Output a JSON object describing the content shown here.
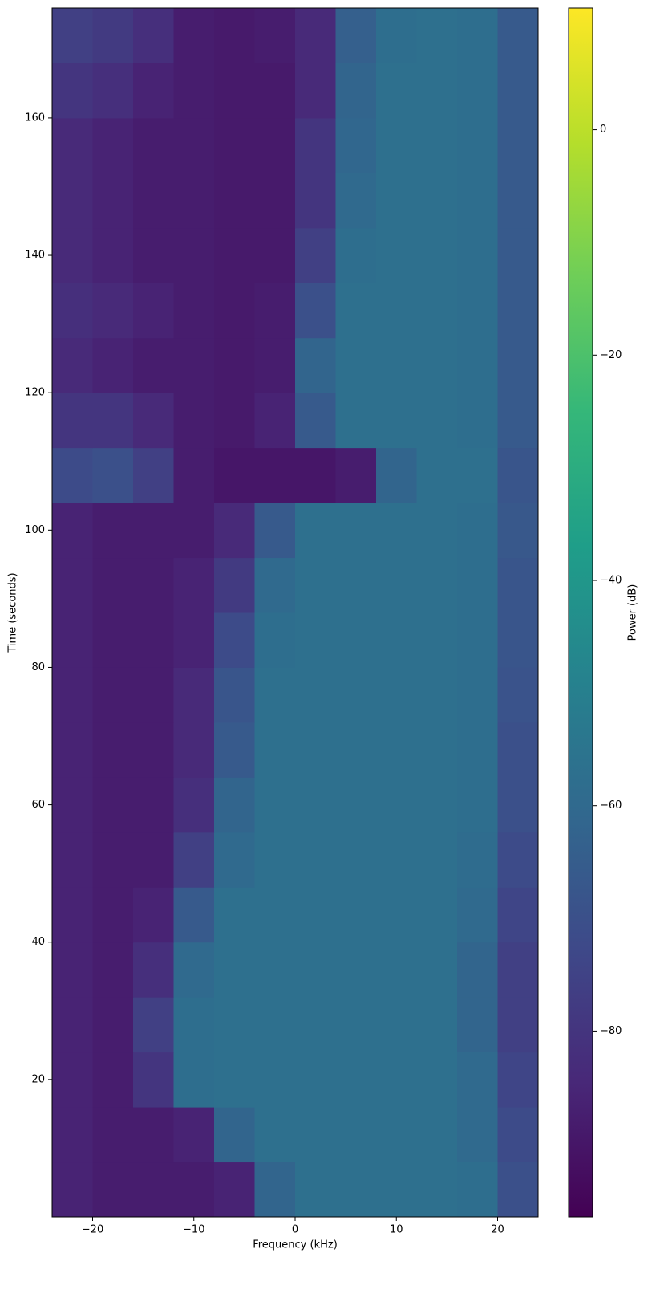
{
  "chart_data": {
    "type": "heatmap",
    "xlabel": "Frequency (kHz)",
    "ylabel": "Time (seconds)",
    "colorbar_label": "Power (dB)",
    "xlim": [
      -24,
      24
    ],
    "ylim": [
      0,
      176
    ],
    "xticks": [
      {
        "value": -20,
        "label": "−20"
      },
      {
        "value": -10,
        "label": "−10"
      },
      0,
      10,
      20
    ],
    "yticks": [
      20,
      40,
      60,
      80,
      100,
      120,
      140,
      160
    ],
    "clim": [
      -96.5,
      10.8
    ],
    "cticks": [
      {
        "value": -80,
        "label": "−80"
      },
      {
        "value": -60,
        "label": "−60"
      },
      {
        "value": -40,
        "label": "−40"
      },
      {
        "value": -20,
        "label": "−20"
      },
      0
    ],
    "colormap": "viridis",
    "xbins": [
      -24,
      -20,
      -16,
      -12,
      -8,
      -4,
      0,
      4,
      8,
      12,
      16,
      20,
      24
    ],
    "ybins": [
      0,
      8,
      16,
      24,
      32,
      40,
      48,
      56,
      64,
      72,
      80,
      88,
      96,
      104,
      112,
      120,
      128,
      136,
      144,
      152,
      160,
      168,
      176
    ],
    "values": [
      [
        -86,
        -88,
        -88,
        -88,
        -86,
        -62,
        -57,
        -57,
        -57,
        -57,
        -58,
        -70
      ],
      [
        -86,
        -88,
        -88,
        -86,
        -62,
        -57,
        -57,
        -57,
        -57,
        -57,
        -60,
        -72
      ],
      [
        -86,
        -88,
        -80,
        -58,
        -57,
        -57,
        -57,
        -57,
        -57,
        -57,
        -60,
        -74
      ],
      [
        -86,
        -88,
        -76,
        -58,
        -57,
        -57,
        -57,
        -57,
        -57,
        -57,
        -62,
        -76
      ],
      [
        -86,
        -88,
        -82,
        -60,
        -57,
        -57,
        -57,
        -57,
        -57,
        -57,
        -62,
        -76
      ],
      [
        -86,
        -88,
        -86,
        -66,
        -57,
        -57,
        -57,
        -57,
        -57,
        -57,
        -60,
        -74
      ],
      [
        -86,
        -88,
        -88,
        -76,
        -60,
        -57,
        -57,
        -57,
        -57,
        -57,
        -59,
        -72
      ],
      [
        -86,
        -88,
        -88,
        -82,
        -62,
        -57,
        -57,
        -57,
        -57,
        -57,
        -58,
        -70
      ],
      [
        -86,
        -88,
        -88,
        -84,
        -66,
        -57,
        -57,
        -57,
        -57,
        -57,
        -58,
        -70
      ],
      [
        -86,
        -88,
        -88,
        -84,
        -68,
        -57,
        -57,
        -57,
        -57,
        -57,
        -58,
        -69
      ],
      [
        -86,
        -88,
        -88,
        -86,
        -72,
        -58,
        -57,
        -57,
        -57,
        -57,
        -58,
        -68
      ],
      [
        -86,
        -88,
        -88,
        -86,
        -78,
        -60,
        -57,
        -57,
        -57,
        -57,
        -58,
        -68
      ],
      [
        -86,
        -88,
        -88,
        -88,
        -84,
        -66,
        -57,
        -57,
        -57,
        -57,
        -58,
        -67
      ],
      [
        -72,
        -70,
        -76,
        -88,
        -90,
        -90,
        -90,
        -88,
        -62,
        -57,
        -57,
        -68
      ],
      [
        -80,
        -80,
        -84,
        -88,
        -89,
        -86,
        -66,
        -57,
        -57,
        -57,
        -58,
        -66
      ],
      [
        -84,
        -86,
        -88,
        -88,
        -89,
        -88,
        -62,
        -57,
        -57,
        -57,
        -58,
        -66
      ],
      [
        -82,
        -84,
        -86,
        -88,
        -89,
        -88,
        -70,
        -57,
        -57,
        -57,
        -58,
        -66
      ],
      [
        -84,
        -86,
        -88,
        -88,
        -89,
        -89,
        -76,
        -58,
        -57,
        -57,
        -58,
        -66
      ],
      [
        -84,
        -86,
        -88,
        -88,
        -89,
        -89,
        -80,
        -60,
        -57,
        -57,
        -58,
        -66
      ],
      [
        -84,
        -86,
        -88,
        -88,
        -89,
        -89,
        -80,
        -61,
        -57,
        -57,
        -58,
        -66
      ],
      [
        -80,
        -82,
        -86,
        -88,
        -89,
        -89,
        -84,
        -62,
        -57,
        -57,
        -58,
        -66
      ],
      [
        -76,
        -78,
        -82,
        -88,
        -89,
        -88,
        -84,
        -64,
        -58,
        -57,
        -58,
        -66
      ]
    ]
  }
}
